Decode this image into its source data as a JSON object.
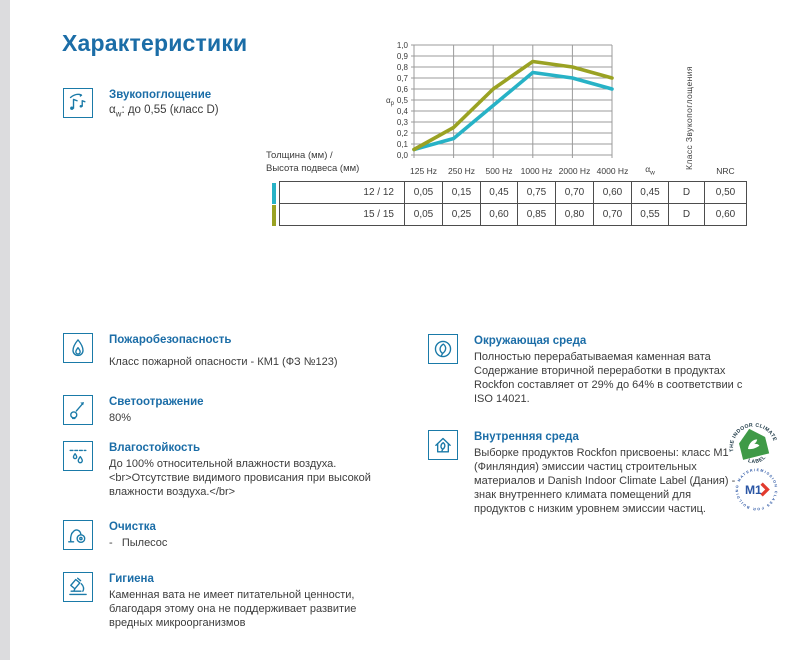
{
  "page": {
    "title": "Характеристики",
    "accent_blue": "#1b6da7",
    "icon_blue": "#1a7aa8",
    "left_strip_color": "#dcdcde"
  },
  "sound": {
    "title": "Звукопоглощение",
    "alpha_base": "α",
    "alpha_sub": "w",
    "value_rest": ": до 0,55 (класс D)"
  },
  "chart_data": {
    "type": "line",
    "x_categories": [
      "125 Hz",
      "250 Hz",
      "500 Hz",
      "1000 Hz",
      "2000 Hz",
      "4000 Hz"
    ],
    "ylabel_base": "α",
    "ylabel_sub": "p",
    "ylim": [
      0.0,
      1.0
    ],
    "ytick_labels": [
      "1,0",
      "0,9",
      "0,8",
      "0,7",
      "0,6",
      "0,5",
      "0,4",
      "0,3",
      "0,2",
      "0,1",
      "0,0"
    ],
    "right_axis_label": "Класс Звукопоглощения",
    "grid": true,
    "legend_position": "none",
    "series": [
      {
        "name": "12 / 12",
        "color": "#27b2c6",
        "values": [
          0.05,
          0.15,
          0.45,
          0.75,
          0.7,
          0.6
        ]
      },
      {
        "name": "15 / 15",
        "color": "#9aa223",
        "values": [
          0.05,
          0.25,
          0.6,
          0.85,
          0.8,
          0.7
        ]
      }
    ]
  },
  "table": {
    "row_label_header": [
      "Толщина (мм) /",
      "Высота подвеса (мм)"
    ],
    "freq_headers": [
      "125 Hz",
      "250 Hz",
      "500 Hz",
      "1000 Hz",
      "2000 Hz",
      "4000 Hz"
    ],
    "alpha_w_header": {
      "base": "α",
      "sub": "w"
    },
    "nrc_header": "NRC",
    "rows": [
      {
        "label": "12 / 12",
        "color": "#27b2c6",
        "values": [
          "0,05",
          "0,15",
          "0,45",
          "0,75",
          "0,70",
          "0,60",
          "0,45",
          "D",
          "0,50"
        ]
      },
      {
        "label": "15 / 15",
        "color": "#9aa223",
        "values": [
          "0,05",
          "0,25",
          "0,60",
          "0,85",
          "0,80",
          "0,70",
          "0,55",
          "D",
          "0,60"
        ]
      }
    ]
  },
  "features_left": [
    {
      "id": "fire",
      "icon": "flame-icon",
      "title": "Пожаробезопасность",
      "body": "Класс пожарной опасности - КМ1 (ФЗ №123)"
    },
    {
      "id": "light",
      "icon": "bulb-icon",
      "title": "Светоотражение",
      "body": "80%"
    },
    {
      "id": "moisture",
      "icon": "droplets-icon",
      "title": "Влагостойкость",
      "body": "До 100% относительной влажности воздуха.<br>Отсутствие видимого провисания при высокой влажности воздуха.</br>"
    },
    {
      "id": "cleaning",
      "icon": "vacuum-icon",
      "title": "Очистка",
      "body": "-   Пылесос"
    },
    {
      "id": "hygiene",
      "icon": "microscope-icon",
      "title": "Гигиена",
      "body": "Каменная вата не имеет питательной ценности, благодаря этому она не поддерживает развитие вредных микроорганизмов"
    }
  ],
  "features_right": [
    {
      "id": "environment",
      "icon": "leaf-icon",
      "title": "Окружающая среда",
      "body": "Полностью перерабатываемая каменная вата\nСодержание вторичной переработки в продуктах Rockfon составляет от 29% до 64% в соответствии с ISO 14021."
    },
    {
      "id": "indoor",
      "icon": "house-leaf-icon",
      "title": "Внутренняя среда",
      "body": "Выборке продуктов Rockfon присвоены: класс M1 (Финляндия) эмиссии частиц строительных материалов и Danish Indoor Climate Label (Дания) - знак внутреннего климата помещений для продуктов с низким уровнем эмиссии частиц."
    }
  ],
  "logos": {
    "indoor_climate": {
      "top_text": "THE INDOOR CLIMATE",
      "bottom_text": "LABEL",
      "house_color": "#3f9a47"
    },
    "m1": {
      "ring_text": "EMISSION CLASS FOR BUILDING MATERIALS",
      "center_text": "M1",
      "blue": "#2a55a4",
      "red": "#e23b2e"
    }
  }
}
